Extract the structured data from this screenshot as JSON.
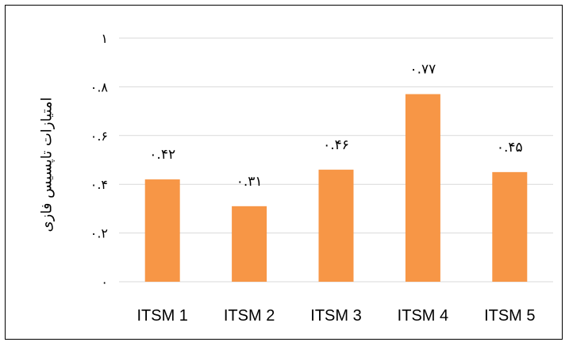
{
  "chart_data": {
    "type": "bar",
    "categories": [
      "ITSM 1",
      "ITSM 2",
      "ITSM 3",
      "ITSM 4",
      "ITSM 5"
    ],
    "values": [
      0.42,
      0.31,
      0.46,
      0.77,
      0.45
    ],
    "data_labels": [
      "۰.۴۲",
      "۰.۳۱",
      "۰.۴۶",
      "۰.۷۷",
      "۰.۴۵"
    ],
    "yticks": [
      0,
      0.2,
      0.4,
      0.6,
      0.8,
      1
    ],
    "ytick_labels": [
      "۰",
      "۰.۲",
      "۰.۴",
      "۰.۶",
      "۰.۸",
      "۱"
    ],
    "ylabel": "امتیازات تاپسیس فازی",
    "xlabel": "",
    "title": "",
    "ylim": [
      0,
      1
    ],
    "grid": true,
    "bar_color": "#F79646",
    "grid_color": "#D9D9D9"
  }
}
